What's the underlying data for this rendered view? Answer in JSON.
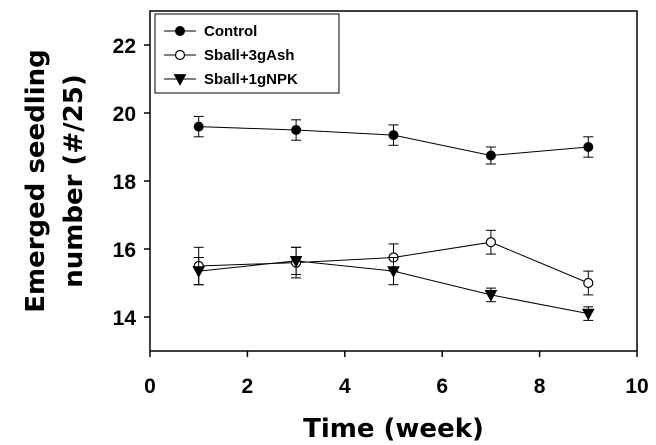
{
  "chart_data": {
    "type": "line",
    "title": "",
    "xlabel": "Time (week)",
    "ylabel_lines": [
      "Emerged seedling",
      "number (#/25)"
    ],
    "xlim": [
      0,
      10
    ],
    "ylim": [
      13,
      23
    ],
    "x_ticks": [
      0,
      2,
      4,
      6,
      8,
      10
    ],
    "y_ticks": [
      14,
      16,
      18,
      20,
      22
    ],
    "grid": false,
    "legend_position": "top-left",
    "x": [
      1,
      3,
      5,
      7,
      9
    ],
    "series": [
      {
        "name": "Control",
        "marker": "filled-circle",
        "values": [
          19.6,
          19.5,
          19.35,
          18.75,
          19.0
        ],
        "errors": [
          0.3,
          0.3,
          0.3,
          0.25,
          0.3
        ]
      },
      {
        "name": "Sball+3gAsh",
        "marker": "open-circle",
        "values": [
          15.5,
          15.6,
          15.75,
          16.2,
          15.0
        ],
        "errors": [
          0.55,
          0.45,
          0.4,
          0.35,
          0.35
        ]
      },
      {
        "name": "Sball+1gNPK",
        "marker": "filled-triangle-down",
        "values": [
          15.35,
          15.65,
          15.35,
          14.65,
          14.1
        ],
        "errors": [
          0.4,
          0.4,
          0.4,
          0.2,
          0.2
        ]
      }
    ]
  }
}
